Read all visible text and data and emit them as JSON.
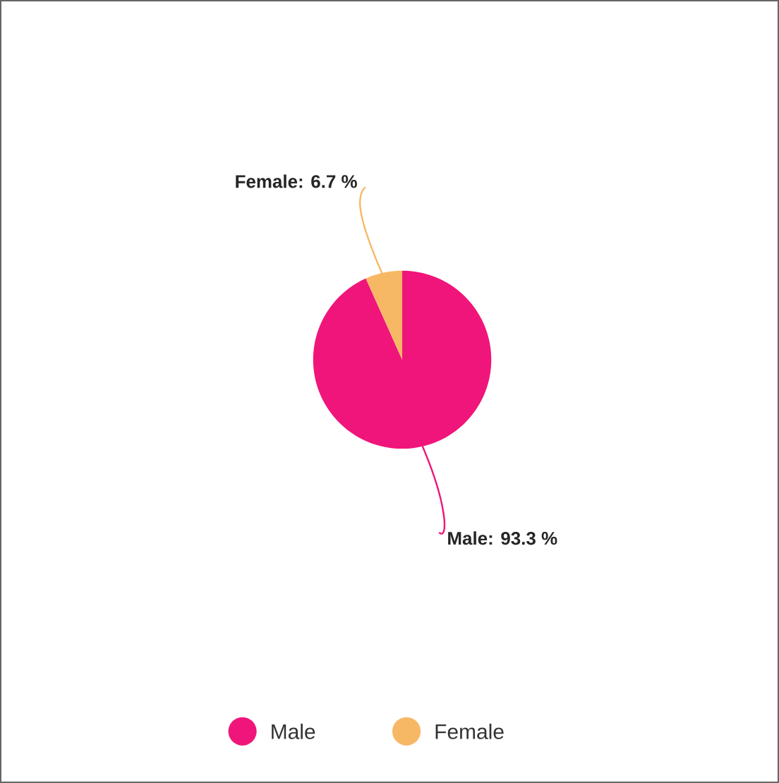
{
  "chart_data": {
    "type": "pie",
    "categories": [
      "Male",
      "Female"
    ],
    "values": [
      93.3,
      6.7
    ],
    "colors": [
      "#f0157a",
      "#f7b865"
    ],
    "value_labels": [
      "Male: 93.3 %",
      "Female: 6.7 %"
    ],
    "legend": "bottom"
  }
}
